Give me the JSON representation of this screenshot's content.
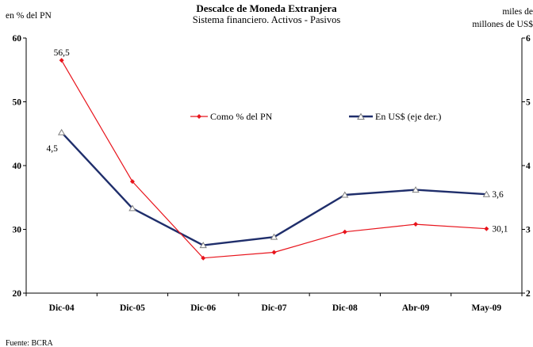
{
  "chart_data": {
    "type": "line",
    "title": "Descalce de Moneda Extranjera",
    "subtitle": "Sistema financiero. Activos - Pasivos",
    "ylabel_left": "en % del PN",
    "ylabel_right_line1": "miles de",
    "ylabel_right_line2": "millones de US$",
    "source": "Fuente: BCRA",
    "categories": [
      "Dic-04",
      "Dic-05",
      "Dic-06",
      "Dic-07",
      "Dic-08",
      "Abr-09",
      "May-09"
    ],
    "ylim_left": [
      20,
      60
    ],
    "yticks_left": [
      20,
      30,
      40,
      50,
      60
    ],
    "ylim_right": [
      2,
      6
    ],
    "yticks_right": [
      2,
      3,
      4,
      5,
      6
    ],
    "legend_placement": "center",
    "grid": false,
    "series": [
      {
        "name": "Como % del PN",
        "axis": "left",
        "color": "#e8141c",
        "marker": "diamond",
        "values": [
          56.5,
          37.5,
          25.5,
          26.4,
          29.6,
          30.8,
          30.1
        ],
        "labels": [
          "56,5",
          "",
          "",
          "",
          "",
          "",
          "30,1"
        ]
      },
      {
        "name": "En US$ (eje der.)",
        "axis": "right",
        "color": "#1f2e6b",
        "marker": "triangle",
        "values": [
          4.52,
          3.33,
          2.75,
          2.88,
          3.54,
          3.62,
          3.55
        ],
        "labels": [
          "4,5",
          "",
          "",
          "",
          "",
          "",
          "3,6"
        ]
      }
    ]
  }
}
